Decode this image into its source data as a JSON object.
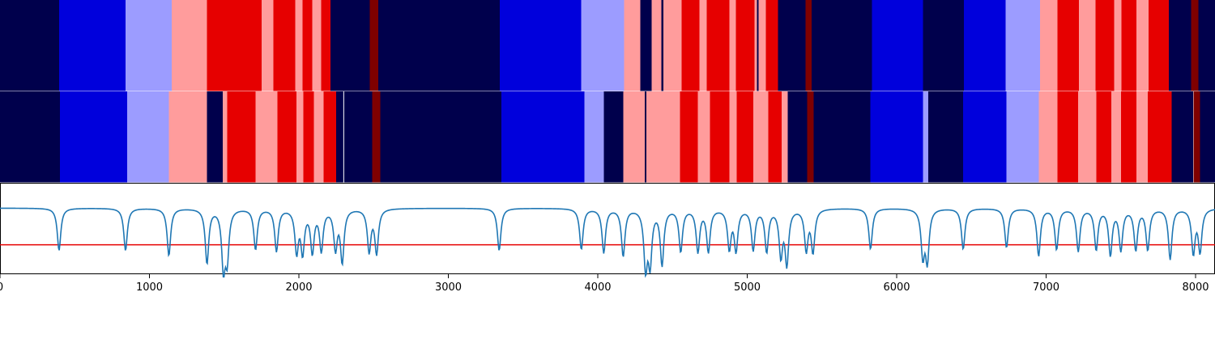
{
  "chart_data": [
    {
      "type": "heatmap",
      "row": "top",
      "xlim": [
        0,
        8130
      ],
      "colors": {
        "0": "#00004c",
        "1": "#0000dc",
        "2": "#9c9cff",
        "3": "#ff9c9c",
        "4": "#e60000",
        "5": "#7f0000"
      },
      "segments": [
        [
          0,
          395,
          0
        ],
        [
          395,
          840,
          1
        ],
        [
          840,
          1150,
          2
        ],
        [
          1150,
          1385,
          3
        ],
        [
          1385,
          1750,
          4
        ],
        [
          1750,
          1830,
          3
        ],
        [
          1830,
          1975,
          4
        ],
        [
          1975,
          2025,
          3
        ],
        [
          2025,
          2090,
          4
        ],
        [
          2090,
          2150,
          3
        ],
        [
          2150,
          2210,
          4
        ],
        [
          2210,
          2475,
          0
        ],
        [
          2475,
          2530,
          5
        ],
        [
          2530,
          3345,
          0
        ],
        [
          3345,
          3890,
          1
        ],
        [
          3890,
          4175,
          2
        ],
        [
          4175,
          4285,
          3
        ],
        [
          4285,
          4360,
          0
        ],
        [
          4360,
          4425,
          3
        ],
        [
          4425,
          4440,
          0
        ],
        [
          4440,
          4560,
          3
        ],
        [
          4560,
          4680,
          4
        ],
        [
          4680,
          4730,
          3
        ],
        [
          4730,
          4880,
          4
        ],
        [
          4880,
          4925,
          3
        ],
        [
          4925,
          5050,
          4
        ],
        [
          5050,
          5065,
          3
        ],
        [
          5065,
          5075,
          0
        ],
        [
          5075,
          5125,
          3
        ],
        [
          5125,
          5205,
          4
        ],
        [
          5205,
          5390,
          0
        ],
        [
          5390,
          5430,
          5
        ],
        [
          5430,
          5835,
          0
        ],
        [
          5835,
          6175,
          1
        ],
        [
          6175,
          6450,
          0
        ],
        [
          6450,
          6730,
          1
        ],
        [
          6730,
          6960,
          2
        ],
        [
          6960,
          7075,
          3
        ],
        [
          7075,
          7220,
          4
        ],
        [
          7220,
          7330,
          3
        ],
        [
          7330,
          7455,
          4
        ],
        [
          7455,
          7505,
          3
        ],
        [
          7505,
          7605,
          4
        ],
        [
          7605,
          7685,
          3
        ],
        [
          7685,
          7820,
          4
        ],
        [
          7820,
          7970,
          0
        ],
        [
          7970,
          8020,
          5
        ],
        [
          8020,
          8130,
          0
        ]
      ]
    },
    {
      "type": "heatmap",
      "row": "middle",
      "xlim": [
        0,
        8130
      ],
      "segments": [
        [
          0,
          400,
          0
        ],
        [
          400,
          850,
          1
        ],
        [
          850,
          1130,
          2
        ],
        [
          1130,
          1385,
          3
        ],
        [
          1385,
          1490,
          0
        ],
        [
          1490,
          1520,
          3
        ],
        [
          1520,
          1710,
          4
        ],
        [
          1710,
          1855,
          3
        ],
        [
          1855,
          1985,
          4
        ],
        [
          1985,
          2030,
          3
        ],
        [
          2030,
          2100,
          4
        ],
        [
          2100,
          2165,
          3
        ],
        [
          2165,
          2250,
          4
        ],
        [
          2250,
          2490,
          0
        ],
        [
          2490,
          2545,
          5
        ],
        [
          2545,
          3355,
          0
        ],
        [
          3355,
          3910,
          1
        ],
        [
          3910,
          4040,
          2
        ],
        [
          4040,
          4170,
          0
        ],
        [
          4170,
          4315,
          3
        ],
        [
          4315,
          4325,
          0
        ],
        [
          4325,
          4550,
          3
        ],
        [
          4550,
          4670,
          4
        ],
        [
          4670,
          4750,
          3
        ],
        [
          4750,
          4880,
          4
        ],
        [
          4880,
          4930,
          3
        ],
        [
          4930,
          5040,
          4
        ],
        [
          5040,
          5140,
          3
        ],
        [
          5140,
          5230,
          4
        ],
        [
          5230,
          5270,
          3
        ],
        [
          5270,
          5400,
          0
        ],
        [
          5400,
          5445,
          5
        ],
        [
          5445,
          5825,
          0
        ],
        [
          5825,
          6175,
          1
        ],
        [
          6175,
          6210,
          2
        ],
        [
          6210,
          6445,
          0
        ],
        [
          6445,
          6735,
          1
        ],
        [
          6735,
          6950,
          2
        ],
        [
          6950,
          7075,
          3
        ],
        [
          7075,
          7215,
          4
        ],
        [
          7215,
          7335,
          3
        ],
        [
          7335,
          7435,
          4
        ],
        [
          7435,
          7500,
          3
        ],
        [
          7500,
          7605,
          4
        ],
        [
          7605,
          7680,
          3
        ],
        [
          7680,
          7840,
          4
        ],
        [
          7840,
          7985,
          0
        ],
        [
          7985,
          8030,
          5
        ],
        [
          8030,
          8130,
          0
        ]
      ],
      "white_lines": [
        2300
      ]
    },
    {
      "type": "line",
      "row": "bottom",
      "xlim": [
        0,
        8130
      ],
      "ylim": [
        -0.1,
        1.0
      ],
      "baseline_value": 0.7,
      "peak_depth": 0.6,
      "peak_width": 14,
      "colors": {
        "line": "#1f77b4",
        "threshold": "#e60000"
      },
      "threshold": 0.25,
      "dips": [
        {
          "x": 395,
          "d": 0.52
        },
        {
          "x": 840,
          "d": 0.52
        },
        {
          "x": 1130,
          "d": 0.58
        },
        {
          "x": 1385,
          "d": 0.67
        },
        {
          "x": 1495,
          "d": 0.7
        },
        {
          "x": 1520,
          "d": 0.58
        },
        {
          "x": 1710,
          "d": 0.5
        },
        {
          "x": 1850,
          "d": 0.52
        },
        {
          "x": 1985,
          "d": 0.52
        },
        {
          "x": 2025,
          "d": 0.52
        },
        {
          "x": 2090,
          "d": 0.52
        },
        {
          "x": 2150,
          "d": 0.5
        },
        {
          "x": 2245,
          "d": 0.48
        },
        {
          "x": 2290,
          "d": 0.64
        },
        {
          "x": 2470,
          "d": 0.52
        },
        {
          "x": 2520,
          "d": 0.54
        },
        {
          "x": 3340,
          "d": 0.52
        },
        {
          "x": 3890,
          "d": 0.5
        },
        {
          "x": 4040,
          "d": 0.54
        },
        {
          "x": 4170,
          "d": 0.58
        },
        {
          "x": 4320,
          "d": 0.7
        },
        {
          "x": 4350,
          "d": 0.64
        },
        {
          "x": 4430,
          "d": 0.68
        },
        {
          "x": 4555,
          "d": 0.52
        },
        {
          "x": 4670,
          "d": 0.52
        },
        {
          "x": 4740,
          "d": 0.52
        },
        {
          "x": 4880,
          "d": 0.48
        },
        {
          "x": 4925,
          "d": 0.5
        },
        {
          "x": 5040,
          "d": 0.5
        },
        {
          "x": 5130,
          "d": 0.52
        },
        {
          "x": 5225,
          "d": 0.56
        },
        {
          "x": 5265,
          "d": 0.66
        },
        {
          "x": 5395,
          "d": 0.5
        },
        {
          "x": 5440,
          "d": 0.52
        },
        {
          "x": 5825,
          "d": 0.5
        },
        {
          "x": 6175,
          "d": 0.56
        },
        {
          "x": 6205,
          "d": 0.62
        },
        {
          "x": 6445,
          "d": 0.5
        },
        {
          "x": 6735,
          "d": 0.48
        },
        {
          "x": 6950,
          "d": 0.58
        },
        {
          "x": 7070,
          "d": 0.5
        },
        {
          "x": 7215,
          "d": 0.52
        },
        {
          "x": 7335,
          "d": 0.5
        },
        {
          "x": 7430,
          "d": 0.56
        },
        {
          "x": 7500,
          "d": 0.5
        },
        {
          "x": 7600,
          "d": 0.5
        },
        {
          "x": 7680,
          "d": 0.5
        },
        {
          "x": 7830,
          "d": 0.62
        },
        {
          "x": 7985,
          "d": 0.54
        },
        {
          "x": 8030,
          "d": 0.52
        }
      ],
      "xticks": [
        0,
        1000,
        2000,
        3000,
        4000,
        5000,
        6000,
        7000,
        8000
      ],
      "xticklabels": [
        "0",
        "1000",
        "2000",
        "3000",
        "4000",
        "5000",
        "6000",
        "7000",
        "8000"
      ]
    }
  ]
}
